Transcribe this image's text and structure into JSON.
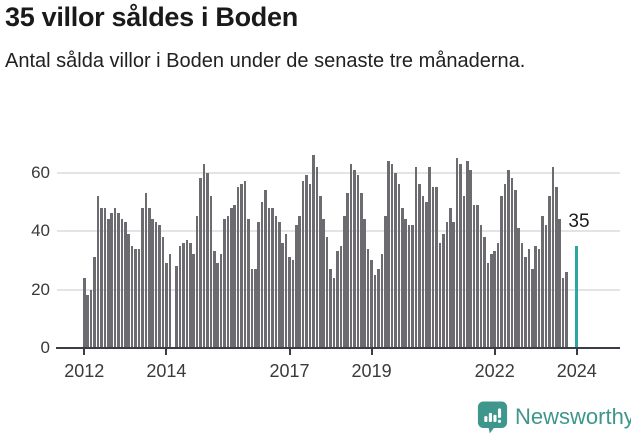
{
  "header": {
    "title": "35 villor såldes i Boden",
    "subtitle": "Antal sålda villor i Boden under de senaste tre månaderna."
  },
  "chart_data": {
    "type": "bar",
    "title": "35 villor såldes i Boden",
    "subtitle": "Antal sålda villor i Boden under de senaste tre månaderna.",
    "xlabel": "",
    "ylabel": "",
    "frequency": "monthly",
    "start_month": "2012-01",
    "ylim": [
      0,
      68
    ],
    "grid": true,
    "y_ticks": [
      0,
      20,
      40,
      60
    ],
    "x_ticks": [
      {
        "label": "2012",
        "index": 0
      },
      {
        "label": "2014",
        "index": 24
      },
      {
        "label": "2017",
        "index": 60
      },
      {
        "label": "2019",
        "index": 84
      },
      {
        "label": "2022",
        "index": 120
      },
      {
        "label": "2024",
        "index": 144
      }
    ],
    "values": [
      24,
      18,
      20,
      31,
      52,
      48,
      48,
      44,
      46,
      48,
      46,
      44,
      43,
      39,
      35,
      34,
      34,
      48,
      53,
      48,
      44,
      43,
      42,
      38,
      29,
      32,
      null,
      28,
      35,
      36,
      37,
      36,
      32,
      45,
      58,
      63,
      60,
      52,
      33,
      29,
      32,
      44,
      45,
      48,
      49,
      55,
      56,
      57,
      44,
      27,
      27,
      43,
      50,
      54,
      48,
      48,
      45,
      43,
      36,
      39,
      31,
      30,
      42,
      45,
      57,
      59,
      56,
      66,
      62,
      52,
      44,
      38,
      27,
      24,
      33,
      35,
      45,
      53,
      63,
      61,
      59,
      53,
      44,
      34,
      30,
      25,
      27,
      32,
      45,
      64,
      63,
      60,
      56,
      48,
      44,
      42,
      42,
      62,
      56,
      52,
      50,
      62,
      55,
      55,
      36,
      39,
      43,
      48,
      43,
      65,
      63,
      52,
      64,
      61,
      49,
      49,
      42,
      38,
      29,
      32,
      33,
      36,
      52,
      56,
      61,
      58,
      54,
      41,
      36,
      31,
      34,
      27,
      35,
      34,
      45,
      42,
      52,
      62,
      55,
      44,
      24,
      26,
      null,
      null,
      35
    ],
    "highlight_index": 144,
    "highlight_value": 35,
    "annotation": {
      "text": "35"
    },
    "bar_color": "#6b6b70",
    "highlight_color": "#2ba6a0",
    "grid_color": "#e4e4e4",
    "axis_color": "#3c3c46"
  },
  "footer": {
    "brand": "Newsworthy",
    "brand_color": "#3f968c",
    "logo_icon": "speech-bubble-bar-chart-icon"
  }
}
